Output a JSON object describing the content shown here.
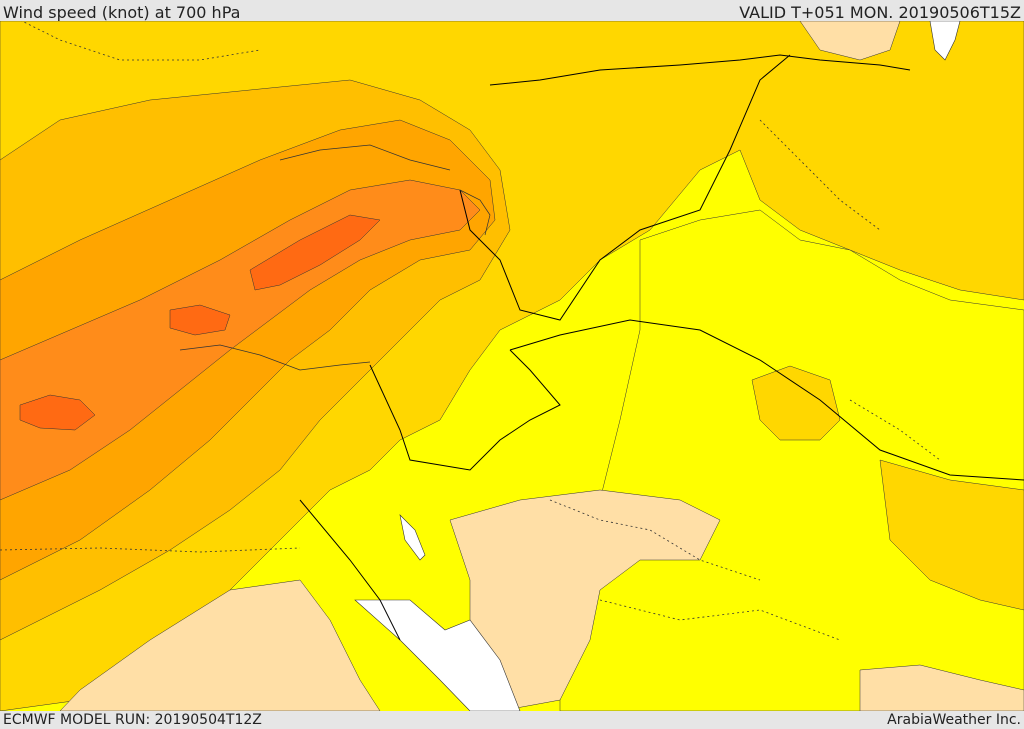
{
  "header": {
    "title": "Wind speed (knot) at 700 hPa",
    "valid_time": "VALID T+051 MON. 20190506T15Z"
  },
  "footer": {
    "model_run": "ECMWF MODEL RUN: 20190504T12Z",
    "credit": "ArabiaWeather Inc."
  },
  "colors": {
    "bg_light": "#ffdfa6",
    "band_yellow": "#ffff00",
    "band_gold": "#ffd700",
    "band_amber": "#ffbf00",
    "band_orange": "#ffa500",
    "band_dark_orange": "#ff8c1a",
    "band_red_orange": "#ff6a13",
    "sea_white": "#ffffff",
    "border_line": "#000000"
  },
  "map": {
    "region": "Eastern Mediterranean / Middle East",
    "field": "wind speed at 700 hPa",
    "features": [
      "contour-bands",
      "country-borders",
      "province-borders",
      "coastlines"
    ]
  }
}
